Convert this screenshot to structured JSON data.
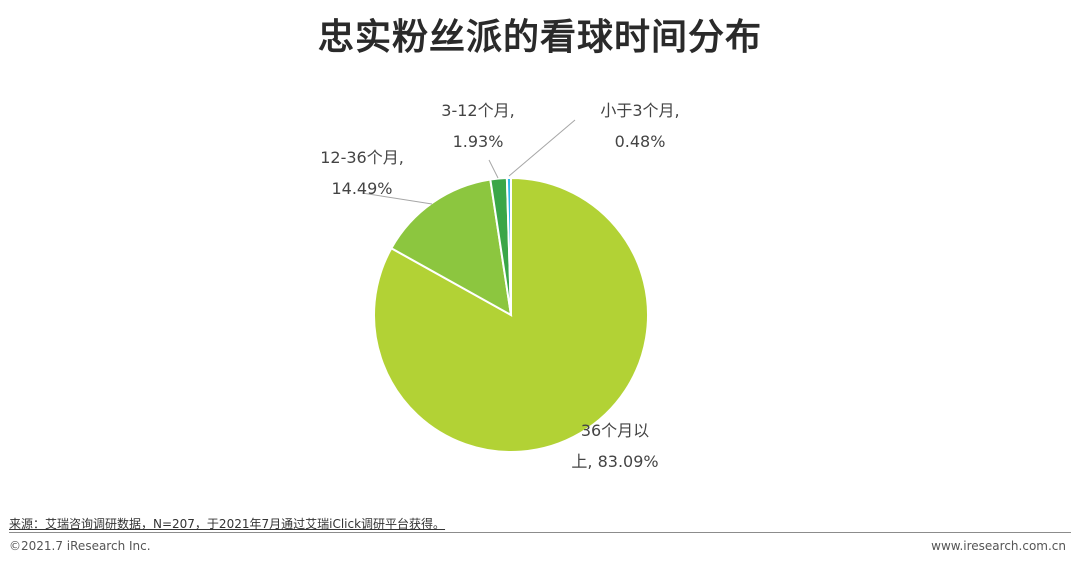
{
  "title": "忠实粉丝派的看球时间分布",
  "source_note": "来源：艾瑞咨询调研数据，N=207，于2021年7月通过艾瑞iClick调研平台获得。",
  "copyright": "©2021.7 iResearch Inc.",
  "website": "www.iresearch.com.cn",
  "chart_data": {
    "type": "pie",
    "start_angle_deg": 0,
    "direction": "clockwise",
    "slices": [
      {
        "label_lines": [
          "36个月以",
          "上, 83.09%"
        ],
        "category": "36个月以上",
        "value": 83.09,
        "display": "83.09%",
        "color": "#b2d235"
      },
      {
        "label_lines": [
          "12-36个月,",
          "14.49%"
        ],
        "category": "12-36个月",
        "value": 14.49,
        "display": "14.49%",
        "color": "#8cc63f"
      },
      {
        "label_lines": [
          "3-12个月,",
          "1.93%"
        ],
        "category": "3-12个月",
        "value": 1.93,
        "display": "1.93%",
        "color": "#3aa648"
      },
      {
        "label_lines": [
          "小于3个月,",
          "0.48%"
        ],
        "category": "小于3个月",
        "value": 0.48,
        "display": "0.48%",
        "color": "#2eb7e8"
      }
    ]
  }
}
